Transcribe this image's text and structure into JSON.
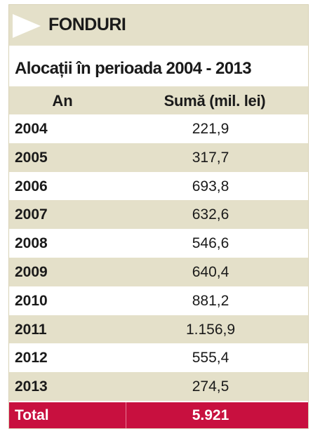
{
  "header": {
    "title": "FONDURI"
  },
  "subtitle": "Alocații în perioada 2004 - 2013",
  "chart_data": {
    "type": "table",
    "columns": [
      "An",
      "Sumă (mil. lei)"
    ],
    "rows": [
      {
        "year": "2004",
        "value": "221,9"
      },
      {
        "year": "2005",
        "value": "317,7"
      },
      {
        "year": "2006",
        "value": "693,8"
      },
      {
        "year": "2007",
        "value": "632,6"
      },
      {
        "year": "2008",
        "value": "546,6"
      },
      {
        "year": "2009",
        "value": "640,4"
      },
      {
        "year": "2010",
        "value": "881,2"
      },
      {
        "year": "2011",
        "value": "1.156,9"
      },
      {
        "year": "2012",
        "value": "555,4"
      },
      {
        "year": "2013",
        "value": "274,5"
      }
    ],
    "total": {
      "label": "Total",
      "value": "5.921"
    }
  },
  "colors": {
    "band": "#e4e0c9",
    "total": "#c8103f"
  }
}
